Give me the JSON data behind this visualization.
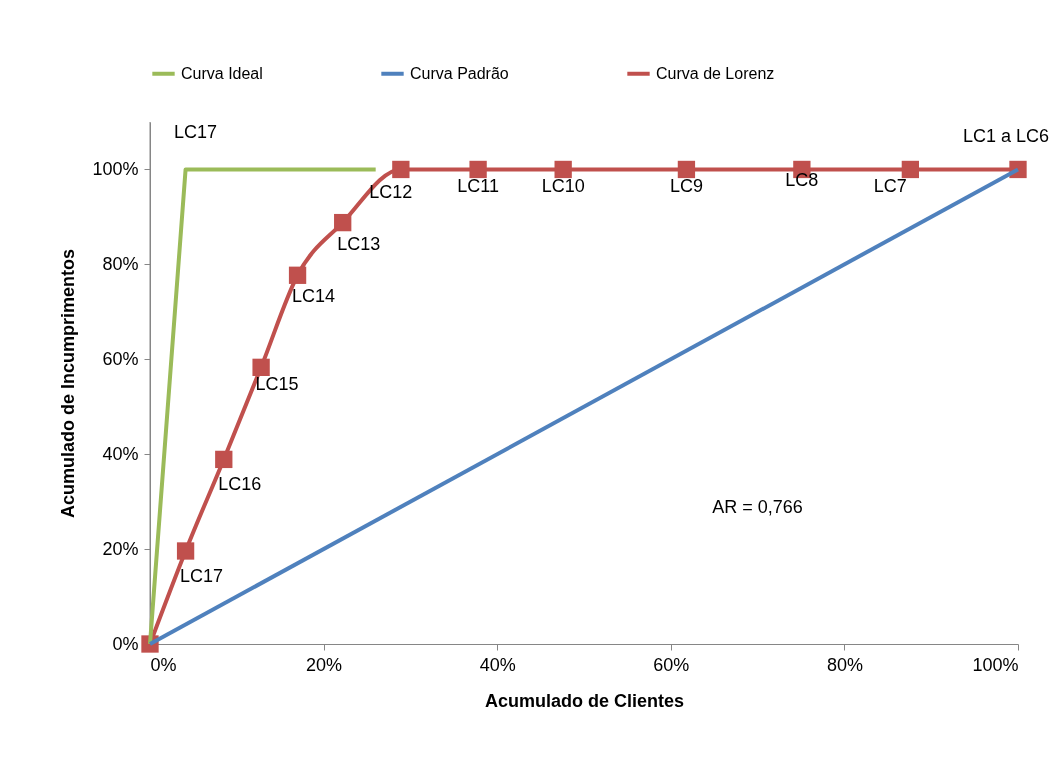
{
  "chart_data": {
    "type": "line",
    "xlabel": "Acumulado de Clientes",
    "ylabel": "Acumulado de Incumprimentos",
    "xlim": [
      0,
      100
    ],
    "ylim": [
      0,
      110
    ],
    "xticks": [
      {
        "value": 0,
        "label": "0%"
      },
      {
        "value": 20,
        "label": "20%"
      },
      {
        "value": 40,
        "label": "40%"
      },
      {
        "value": 60,
        "label": "60%"
      },
      {
        "value": 80,
        "label": "80%"
      },
      {
        "value": 100,
        "label": "100%"
      }
    ],
    "yticks": [
      {
        "value": 0,
        "label": "0%"
      },
      {
        "value": 20,
        "label": "20%"
      },
      {
        "value": 40,
        "label": "40%"
      },
      {
        "value": 60,
        "label": "60%"
      },
      {
        "value": 80,
        "label": "80%"
      },
      {
        "value": 100,
        "label": "100%"
      }
    ],
    "grid": false,
    "legend": "top",
    "line_style": "solid",
    "series": [
      {
        "name": "Curva Ideal",
        "color": "#9bbb59",
        "marker": "none",
        "x": [
          0,
          4.1,
          26
        ],
        "values": [
          0,
          100,
          100
        ]
      },
      {
        "name": "Curva Padrão",
        "color": "#4f81bd",
        "marker": "none",
        "x": [
          0,
          100
        ],
        "values": [
          0,
          100
        ]
      },
      {
        "name": "Curva de Lorenz",
        "color": "#c0504d",
        "marker": "square",
        "x": [
          0,
          4.1,
          8.5,
          12.8,
          17.0,
          22.2,
          28.9,
          37.8,
          47.6,
          61.8,
          75.1,
          87.6,
          100
        ],
        "values": [
          0,
          19.6,
          38.9,
          58.3,
          77.7,
          88.8,
          100,
          100,
          100,
          100,
          100,
          100,
          100
        ]
      }
    ],
    "annotations": [
      {
        "text": "LC17",
        "x": 4.1,
        "y": 100
      },
      {
        "text": "LC17",
        "x": 4.1,
        "y": 19.6
      },
      {
        "text": "LC16",
        "x": 8.5,
        "y": 38.9
      },
      {
        "text": "LC15",
        "x": 12.8,
        "y": 58.3
      },
      {
        "text": "LC14",
        "x": 17.0,
        "y": 77.7
      },
      {
        "text": "LC13",
        "x": 22.2,
        "y": 88.8
      },
      {
        "text": "LC12",
        "x": 28.9,
        "y": 100
      },
      {
        "text": "LC11",
        "x": 37.8,
        "y": 100
      },
      {
        "text": "LC10",
        "x": 47.6,
        "y": 100
      },
      {
        "text": "LC9",
        "x": 61.8,
        "y": 100
      },
      {
        "text": "LC8",
        "x": 75.1,
        "y": 100
      },
      {
        "text": "LC7",
        "x": 87.6,
        "y": 100
      },
      {
        "text": "LC1 a LC6",
        "x": 100,
        "y": 100
      },
      "AR = 0,766"
    ]
  }
}
